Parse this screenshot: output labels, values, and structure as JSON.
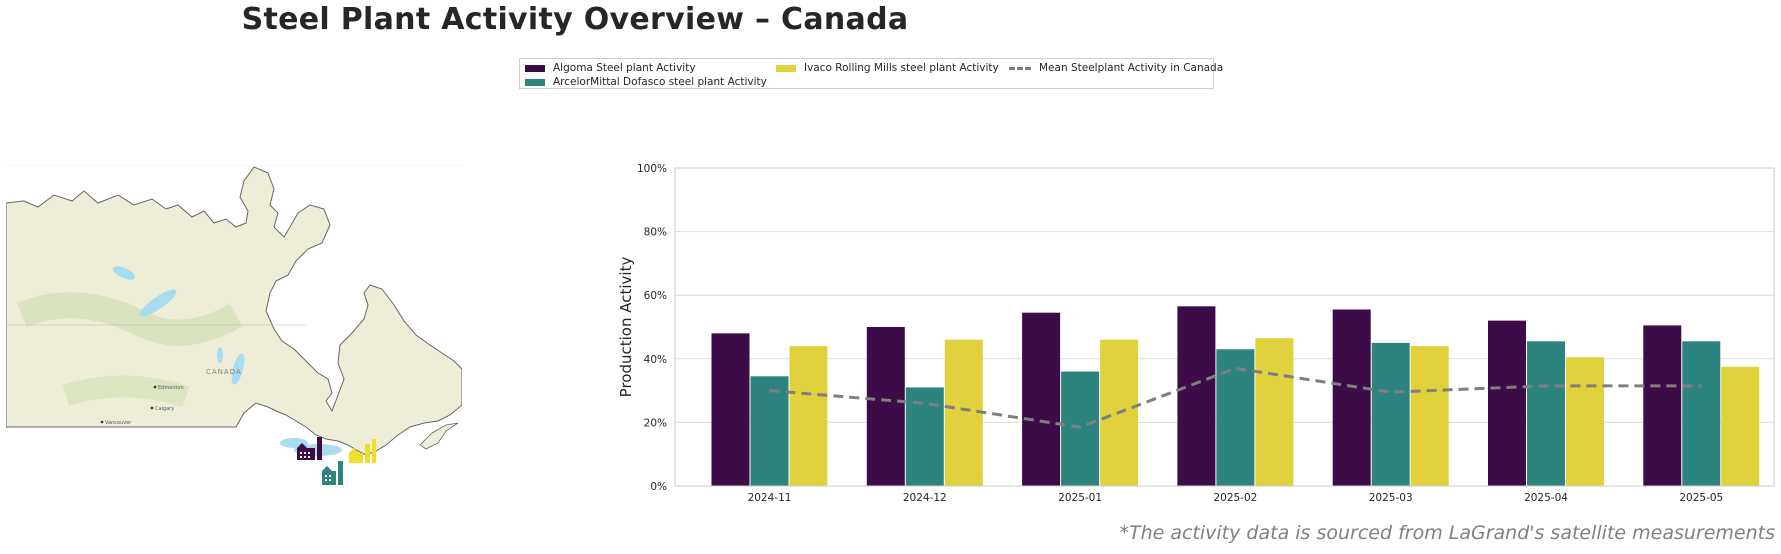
{
  "title": "Steel Plant Activity Overview – Canada",
  "footnote": "*The activity data is sourced from LaGrand's satellite measurements",
  "colors": {
    "algoma": "#3d0b47",
    "dofasco": "#2d837d",
    "ivaco": "#e0d13d",
    "mean": "#7f7f7f",
    "grid": "#dddddd"
  },
  "legend": {
    "algoma": "Algoma Steel plant Activity",
    "dofasco": "ArcelorMittal Dofasco steel plant Activity",
    "ivaco": "Ivaco Rolling Mills steel plant Activity",
    "mean": "Mean Steelplant Activity in Canada"
  },
  "map": {
    "labels": {
      "country": "CANADA",
      "edmonton": "Edmonton",
      "calgary": "Calgary",
      "vancouver": "Vancouver"
    },
    "factory_icons": [
      "factory-icon-purple",
      "factory-icon-teal",
      "factory-icon-yellow"
    ]
  },
  "chart_data": {
    "type": "bar",
    "categories": [
      "2024-11",
      "2024-12",
      "2025-01",
      "2025-02",
      "2025-03",
      "2025-04",
      "2025-05"
    ],
    "series": [
      {
        "name": "Algoma Steel plant Activity",
        "values": [
          48,
          50,
          54.5,
          56.5,
          55.5,
          52,
          50.5
        ]
      },
      {
        "name": "ArcelorMittal Dofasco steel plant Activity",
        "values": [
          34.5,
          31,
          36,
          43,
          45,
          45.5,
          45.5
        ]
      },
      {
        "name": "Ivaco Rolling Mills steel plant Activity",
        "values": [
          44,
          46,
          46,
          46.5,
          44,
          40.5,
          37.5
        ]
      },
      {
        "name": "Mean Steelplant Activity in Canada",
        "type": "line",
        "values": [
          30,
          26,
          18.5,
          37,
          29.5,
          31.5,
          31.5
        ]
      }
    ],
    "ylabel": "Production Activity",
    "xlabel": "",
    "ylim": [
      0,
      100
    ],
    "yticks": [
      "0%",
      "20%",
      "40%",
      "60%",
      "80%",
      "100%"
    ],
    "grid": true,
    "legend_position": "top-center"
  }
}
